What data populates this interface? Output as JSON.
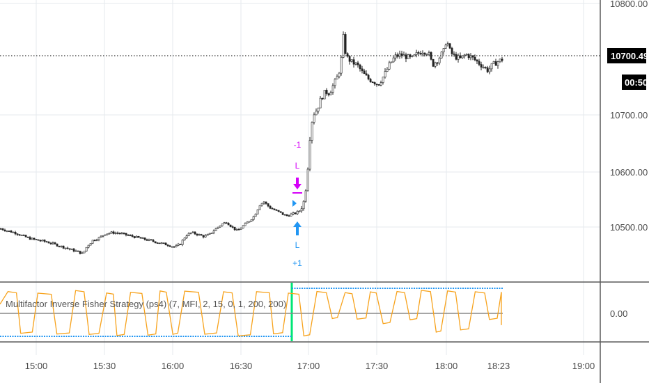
{
  "chart_data": [
    {
      "type": "candlestick",
      "ylim": [
        10320,
        10820
      ],
      "y_ticks": [
        10400,
        10500,
        10600,
        10700,
        10800
      ],
      "y_tick_labels": [
        "10400.00",
        "10500.00",
        "10600.00",
        "10700.00",
        "10800.00"
      ],
      "x_ticks": [
        "15:00",
        "15:30",
        "16:00",
        "16:30",
        "17:00",
        "17:30",
        "18:00",
        "18:23",
        "19:00"
      ],
      "last_price": 10700.49,
      "last_price_label": "10700.49",
      "countdown": "00:50",
      "grid": true,
      "price_path": [
        [
          0,
          10397
        ],
        [
          10,
          10393
        ],
        [
          20,
          10390
        ],
        [
          30,
          10385
        ],
        [
          40,
          10380
        ],
        [
          50,
          10377
        ],
        [
          60,
          10375
        ],
        [
          70,
          10372
        ],
        [
          80,
          10368
        ],
        [
          90,
          10364
        ],
        [
          100,
          10360
        ],
        [
          110,
          10356
        ],
        [
          118,
          10352
        ],
        [
          124,
          10366
        ],
        [
          132,
          10376
        ],
        [
          142,
          10381
        ],
        [
          150,
          10388
        ],
        [
          160,
          10390
        ],
        [
          170,
          10389
        ],
        [
          180,
          10386
        ],
        [
          190,
          10383
        ],
        [
          200,
          10380
        ],
        [
          210,
          10377
        ],
        [
          220,
          10374
        ],
        [
          230,
          10371
        ],
        [
          240,
          10368
        ],
        [
          250,
          10364
        ],
        [
          258,
          10370
        ],
        [
          266,
          10385
        ],
        [
          274,
          10390
        ],
        [
          282,
          10387
        ],
        [
          292,
          10383
        ],
        [
          300,
          10387
        ],
        [
          308,
          10396
        ],
        [
          316,
          10404
        ],
        [
          324,
          10409
        ],
        [
          332,
          10400
        ],
        [
          340,
          10393
        ],
        [
          348,
          10402
        ],
        [
          356,
          10410
        ],
        [
          364,
          10420
        ],
        [
          372,
          10440
        ],
        [
          378,
          10445
        ],
        [
          386,
          10435
        ],
        [
          394,
          10430
        ],
        [
          402,
          10425
        ],
        [
          410,
          10420
        ],
        [
          418,
          10423
        ],
        [
          424,
          10425
        ],
        [
          430,
          10430
        ],
        [
          436,
          10448
        ],
        [
          440,
          10490
        ],
        [
          444,
          10560
        ],
        [
          448,
          10600
        ],
        [
          454,
          10610
        ],
        [
          460,
          10630
        ],
        [
          466,
          10642
        ],
        [
          472,
          10640
        ],
        [
          478,
          10655
        ],
        [
          484,
          10670
        ],
        [
          488,
          10688
        ],
        [
          492,
          10740
        ],
        [
          496,
          10705
        ],
        [
          504,
          10695
        ],
        [
          512,
          10690
        ],
        [
          520,
          10675
        ],
        [
          528,
          10665
        ],
        [
          536,
          10660
        ],
        [
          542,
          10655
        ],
        [
          550,
          10670
        ],
        [
          558,
          10690
        ],
        [
          566,
          10705
        ],
        [
          574,
          10708
        ],
        [
          582,
          10705
        ],
        [
          590,
          10701
        ],
        [
          598,
          10710
        ],
        [
          606,
          10715
        ],
        [
          614,
          10712
        ],
        [
          620,
          10690
        ],
        [
          628,
          10700
        ],
        [
          636,
          10715
        ],
        [
          640,
          10735
        ],
        [
          646,
          10712
        ],
        [
          652,
          10705
        ],
        [
          660,
          10701
        ],
        [
          668,
          10709
        ],
        [
          676,
          10704
        ],
        [
          684,
          10696
        ],
        [
          692,
          10688
        ],
        [
          700,
          10680
        ],
        [
          706,
          10690
        ],
        [
          714,
          10696
        ],
        [
          720,
          10700
        ]
      ]
    },
    {
      "type": "line",
      "title": "Multifactor Inverse Fisher Strategy (ps4) (7, MFI, 2, 15, 0, 1, 200, 200)",
      "ylim": [
        -1.2,
        1.2
      ],
      "y_ticks": [
        0
      ],
      "y_tick_labels": [
        "0.00"
      ],
      "levels": [
        -1,
        1
      ],
      "signal_x": 418
    }
  ],
  "signals": {
    "long_label": "L",
    "long_qty": "+1",
    "close_label": "L",
    "close_qty": "-1"
  },
  "colors": {
    "candle": "#222222",
    "grid": "#e6eaee",
    "oscillator": "#f7a21b",
    "level": "#2196f3",
    "zero_line": "#888888",
    "signal_bar": "#00e676",
    "long_arrow": "#2196f3",
    "close_arrow": "#d500f9"
  }
}
